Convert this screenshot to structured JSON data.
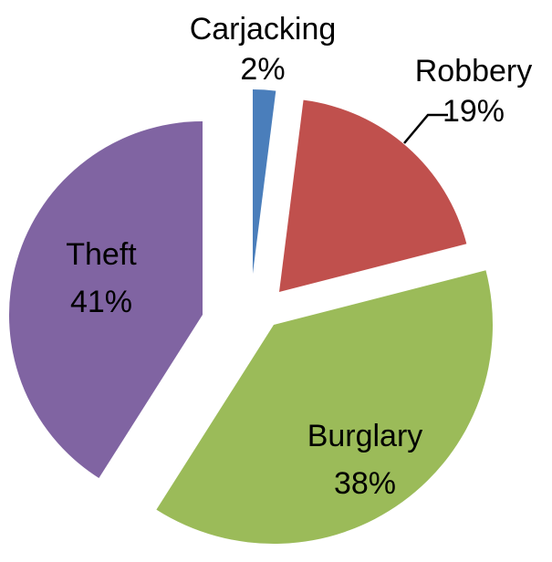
{
  "chart_data": {
    "type": "pie",
    "exploded": true,
    "categories": [
      "Carjacking",
      "Robbery",
      "Burglary",
      "Theft"
    ],
    "values": [
      2,
      19,
      38,
      41
    ],
    "labels": [
      {
        "name": "Carjacking",
        "pct": "2%"
      },
      {
        "name": "Robbery",
        "pct": "19%"
      },
      {
        "name": "Burglary",
        "pct": "38%"
      },
      {
        "name": "Theft",
        "pct": "41%"
      }
    ],
    "colors": [
      "#4a7ebb",
      "#c0504d",
      "#9bbb59",
      "#8064a2"
    ],
    "title": "",
    "start_angle_deg": 0,
    "direction": "clockwise"
  }
}
